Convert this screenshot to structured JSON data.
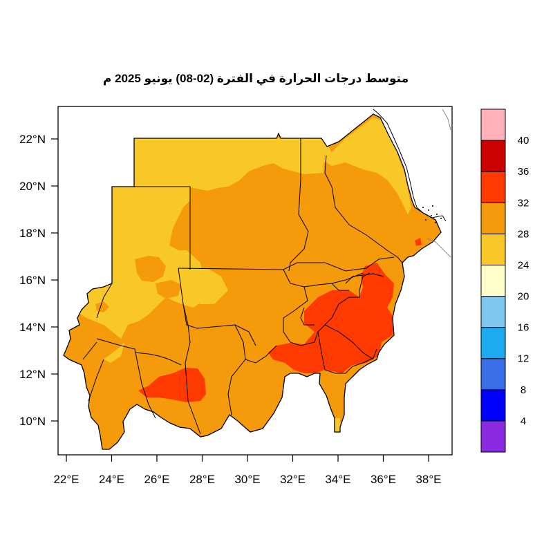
{
  "title": "متوسط درجات الحرارة في الفترة (02-08) يونيو 2025 م",
  "map": {
    "x_ticks": [
      "22°E",
      "24°E",
      "26°E",
      "28°E",
      "30°E",
      "32°E",
      "34°E",
      "36°E",
      "38°E"
    ],
    "y_ticks": [
      "10°N",
      "12°N",
      "14°N",
      "16°N",
      "18°N",
      "20°N",
      "22°N"
    ]
  },
  "colorbar": {
    "labels": [
      "4",
      "8",
      "12",
      "16",
      "20",
      "24",
      "28",
      "32",
      "36",
      "40"
    ],
    "colors": [
      "#8a2be2",
      "#0000ff",
      "#3a6ee8",
      "#1eaaf0",
      "#7ec8f0",
      "#ffffcc",
      "#f8c828",
      "#f59a0a",
      "#ff3a00",
      "#cc0000",
      "#ffb0b8"
    ]
  }
}
